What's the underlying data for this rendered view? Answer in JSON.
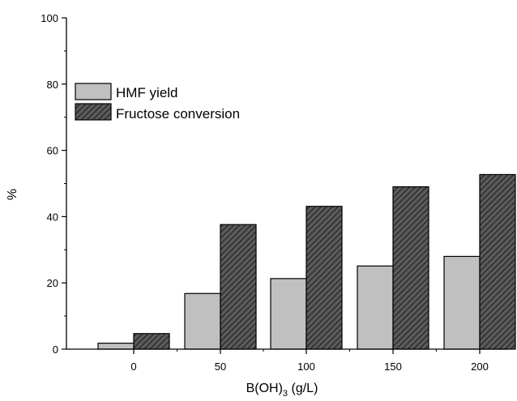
{
  "chart_data": {
    "type": "bar",
    "categories": [
      "0",
      "50",
      "100",
      "150",
      "200"
    ],
    "series": [
      {
        "name": "HMF yield",
        "values": [
          1.8,
          16.8,
          21.3,
          25.1,
          28.0
        ],
        "color": "#c0c0c0",
        "pattern": "solid"
      },
      {
        "name": "Fructose conversion",
        "values": [
          4.7,
          37.6,
          43.1,
          49.0,
          52.7
        ],
        "color": "#555555",
        "pattern": "diagonal-hatch"
      }
    ],
    "xlabel": "B(OH)3 (g/L)",
    "xlabel_parts": {
      "main": "B(OH)",
      "sub": "3",
      "tail": " (g/L)"
    },
    "ylabel": "%",
    "ylim": [
      0,
      100
    ],
    "yticks": [
      0,
      20,
      40,
      60,
      80,
      100
    ],
    "grid": false,
    "legend_position": "upper-left"
  }
}
